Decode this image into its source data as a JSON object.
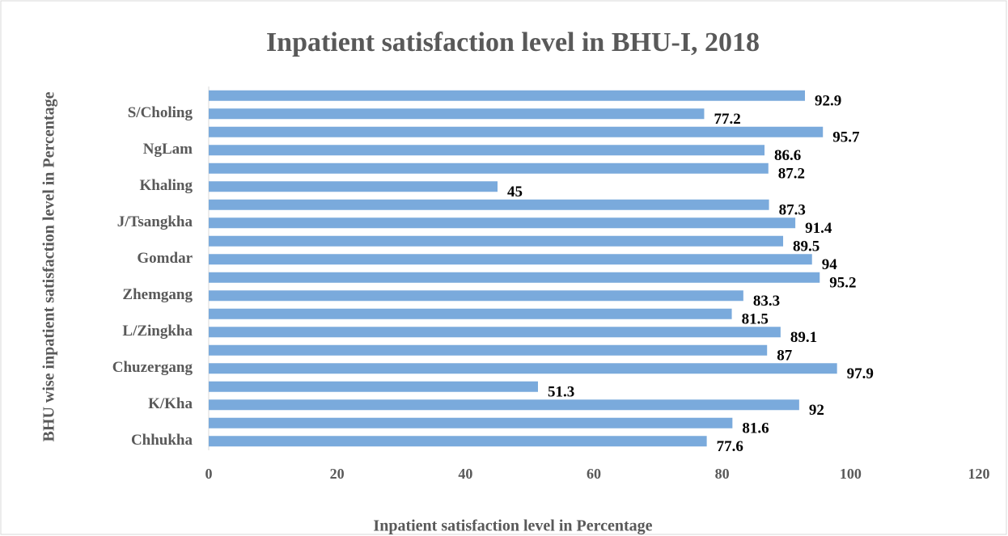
{
  "chart_data": {
    "type": "bar",
    "orientation": "horizontal",
    "title": "Inpatient satisfaction level in BHU-I, 2018",
    "x_label": "Inpatient satisfaction level in Percentage",
    "y_label": "BHU  wise inpatient satisfaction level in Percentage",
    "categories": [
      "Chhukha",
      null,
      "K/Kha",
      null,
      "Chuzergang",
      null,
      "L/Zingkha",
      null,
      "Zhemgang",
      null,
      "Gomdar",
      null,
      "J/Tsangkha",
      null,
      "Khaling",
      null,
      "NgLam",
      null,
      "S/Choling",
      null
    ],
    "values": [
      77.6,
      81.6,
      92,
      51.3,
      97.9,
      87,
      89.1,
      81.5,
      83.3,
      95.2,
      94,
      89.5,
      91.4,
      87.3,
      45,
      87.2,
      86.6,
      95.7,
      77.2,
      92.9
    ],
    "color": "#7aaadc",
    "xlim": [
      0,
      120
    ],
    "xticks": [
      0,
      20,
      40,
      60,
      80,
      100,
      120
    ],
    "grid": false
  }
}
